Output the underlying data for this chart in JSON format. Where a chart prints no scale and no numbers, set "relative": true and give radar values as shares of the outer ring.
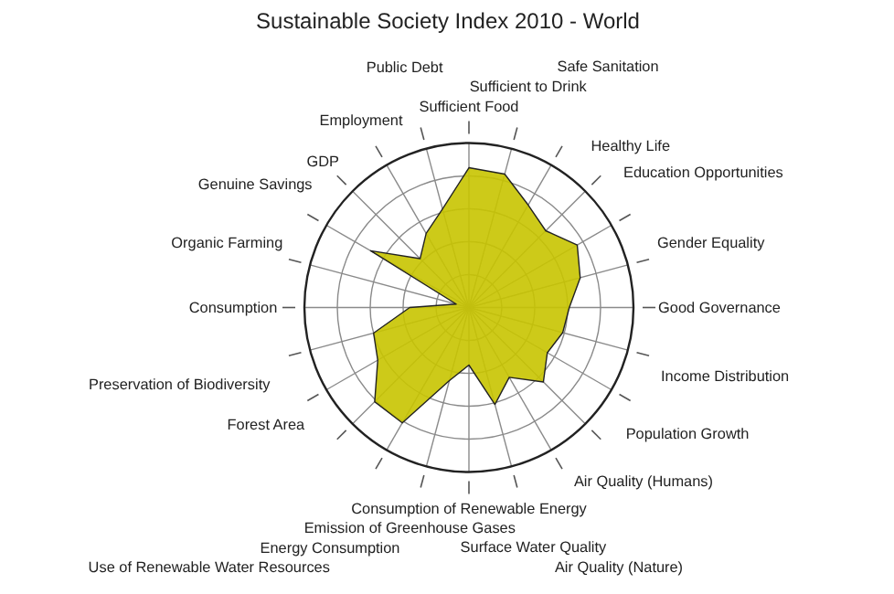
{
  "chart_data": {
    "type": "radar",
    "title": "Sustainable Society Index 2010 - World",
    "relative": true,
    "grid": true,
    "categories": [
      "Sufficient Food",
      "Sufficient to Drink",
      "Safe Sanitation",
      "Healthy Life",
      "Education Opportunities",
      "Gender Equality",
      "Good Governance",
      "Income Distribution",
      "Population Growth",
      "Air Quality (Humans)",
      "Air Quality (Nature)",
      "Surface Water Quality",
      "Consumption of Renewable Energy",
      "Emission of Greenhouse Gases",
      "Energy Consumption",
      "Use of Renewable Water Resources",
      "Forest Area",
      "Preservation of Biodiversity",
      "Consumption",
      "Organic Farming",
      "Genuine Savings",
      "GDP",
      "Employment",
      "Public Debt"
    ],
    "series": [
      {
        "color": "#c8c400",
        "values": [
          0.85,
          0.84,
          0.72,
          0.66,
          0.76,
          0.7,
          0.61,
          0.59,
          0.55,
          0.64,
          0.49,
          0.61,
          0.35,
          0.46,
          0.81,
          0.81,
          0.64,
          0.6,
          0.36,
          0.08,
          0.69,
          0.42,
          0.52,
          0.62
        ]
      }
    ]
  }
}
